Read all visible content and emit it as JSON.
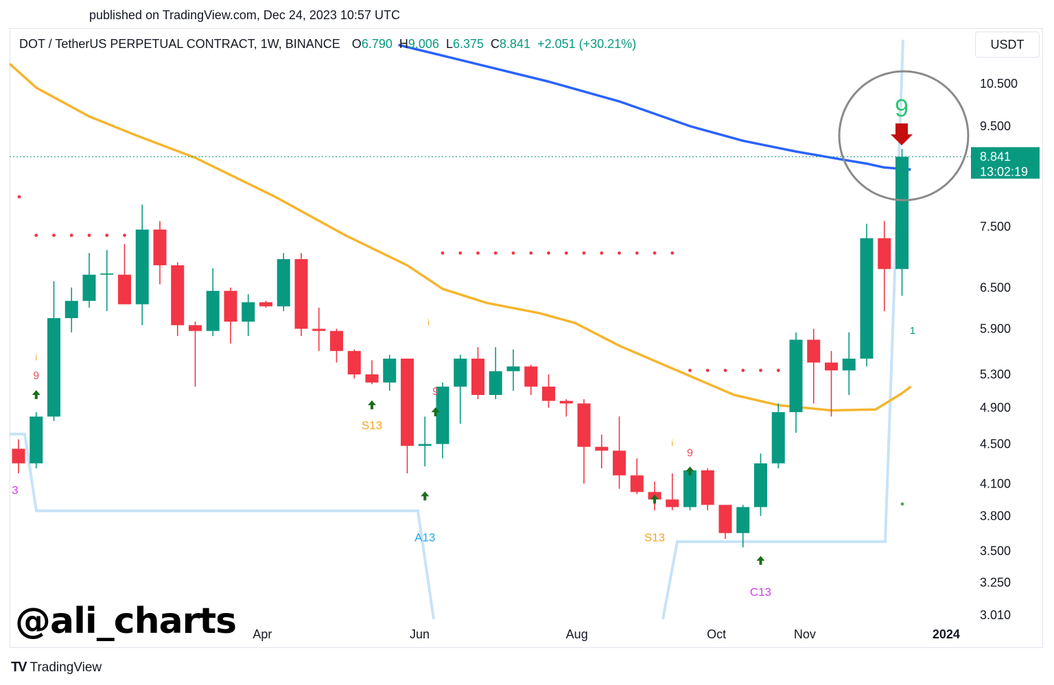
{
  "published": "published on TradingView.com, Dec 24, 2023 10:57 UTC",
  "header": {
    "pair": "DOT / TetherUS PERPETUAL CONTRACT, 1W, BINANCE",
    "o_label": "O",
    "o": "6.790",
    "h_label": "H",
    "h": "9.006",
    "l_label": "L",
    "l": "6.375",
    "c_label": "C",
    "c": "8.841",
    "change": "+2.051 (+30.21%)"
  },
  "currency": "USDT",
  "watermark": "@ali_charts",
  "footer": {
    "logo": "TV",
    "brand": "TradingView"
  },
  "colors": {
    "up": "#089981",
    "down": "#f23645",
    "ma_slow": "#2962ff",
    "ma_fast": "#f5b52e",
    "support": "#c7e3f8",
    "resistance_dots": "#f23645",
    "grid": "#ffffff"
  },
  "chart_data": {
    "type": "candlestick",
    "title": "DOT / TetherUS PERPETUAL CONTRACT, 1W, BINANCE",
    "scale": "log",
    "ylim": [
      3.01,
      11.5
    ],
    "y_ticks": [
      "10.500",
      "9.500",
      "7.500",
      "6.500",
      "5.900",
      "5.300",
      "4.900",
      "4.500",
      "4.100",
      "3.800",
      "3.500",
      "3.250",
      "3.010"
    ],
    "x_ticks": [
      {
        "label": "Apr",
        "index": 13.8
      },
      {
        "label": "Jun",
        "index": 22.7
      },
      {
        "label": "Aug",
        "index": 31.6
      },
      {
        "label": "Oct",
        "index": 39.5
      },
      {
        "label": "Nov",
        "index": 44.5
      },
      {
        "label": "2024",
        "index": 52.5
      }
    ],
    "candles": [
      {
        "o": 4.45,
        "h": 4.55,
        "l": 4.2,
        "c": 4.3
      },
      {
        "o": 4.3,
        "h": 4.85,
        "l": 4.25,
        "c": 4.8
      },
      {
        "o": 4.8,
        "h": 6.6,
        "l": 4.75,
        "c": 6.05
      },
      {
        "o": 6.05,
        "h": 6.5,
        "l": 5.85,
        "c": 6.3
      },
      {
        "o": 6.3,
        "h": 7.05,
        "l": 6.2,
        "c": 6.7
      },
      {
        "o": 6.7,
        "h": 7.1,
        "l": 6.15,
        "c": 6.72
      },
      {
        "o": 6.7,
        "h": 7.2,
        "l": 6.25,
        "c": 6.25
      },
      {
        "o": 6.25,
        "h": 7.9,
        "l": 5.95,
        "c": 7.45
      },
      {
        "o": 7.45,
        "h": 7.6,
        "l": 6.55,
        "c": 6.85
      },
      {
        "o": 6.85,
        "h": 6.9,
        "l": 5.8,
        "c": 5.95
      },
      {
        "o": 5.95,
        "h": 6.0,
        "l": 5.15,
        "c": 5.87
      },
      {
        "o": 5.87,
        "h": 6.8,
        "l": 5.8,
        "c": 6.45
      },
      {
        "o": 6.45,
        "h": 6.5,
        "l": 5.7,
        "c": 6.0
      },
      {
        "o": 6.0,
        "h": 6.4,
        "l": 5.8,
        "c": 6.28
      },
      {
        "o": 6.28,
        "h": 6.3,
        "l": 6.2,
        "c": 6.22
      },
      {
        "o": 6.22,
        "h": 7.05,
        "l": 6.15,
        "c": 6.95
      },
      {
        "o": 6.95,
        "h": 7.05,
        "l": 5.8,
        "c": 5.9
      },
      {
        "o": 5.9,
        "h": 6.2,
        "l": 5.6,
        "c": 5.87
      },
      {
        "o": 5.87,
        "h": 5.9,
        "l": 5.45,
        "c": 5.6
      },
      {
        "o": 5.6,
        "h": 5.62,
        "l": 5.25,
        "c": 5.3
      },
      {
        "o": 5.3,
        "h": 5.48,
        "l": 5.18,
        "c": 5.2
      },
      {
        "o": 5.2,
        "h": 5.55,
        "l": 5.1,
        "c": 5.5
      },
      {
        "o": 5.5,
        "h": 5.5,
        "l": 4.2,
        "c": 4.48
      },
      {
        "o": 4.48,
        "h": 4.8,
        "l": 4.27,
        "c": 4.5
      },
      {
        "o": 4.5,
        "h": 5.2,
        "l": 4.35,
        "c": 5.15
      },
      {
        "o": 5.15,
        "h": 5.55,
        "l": 4.72,
        "c": 5.5
      },
      {
        "o": 5.5,
        "h": 5.65,
        "l": 5.0,
        "c": 5.05
      },
      {
        "o": 5.05,
        "h": 5.65,
        "l": 5.0,
        "c": 5.34
      },
      {
        "o": 5.34,
        "h": 5.62,
        "l": 5.1,
        "c": 5.4
      },
      {
        "o": 5.4,
        "h": 5.42,
        "l": 5.05,
        "c": 5.15
      },
      {
        "o": 5.15,
        "h": 5.3,
        "l": 4.9,
        "c": 4.98
      },
      {
        "o": 4.98,
        "h": 5.0,
        "l": 4.8,
        "c": 4.95
      },
      {
        "o": 4.95,
        "h": 5.0,
        "l": 4.1,
        "c": 4.47
      },
      {
        "o": 4.47,
        "h": 4.6,
        "l": 4.25,
        "c": 4.43
      },
      {
        "o": 4.43,
        "h": 4.8,
        "l": 4.05,
        "c": 4.18
      },
      {
        "o": 4.18,
        "h": 4.35,
        "l": 4.0,
        "c": 4.02
      },
      {
        "o": 4.02,
        "h": 4.12,
        "l": 3.85,
        "c": 3.95
      },
      {
        "o": 3.95,
        "h": 4.2,
        "l": 3.85,
        "c": 3.88
      },
      {
        "o": 3.88,
        "h": 4.25,
        "l": 3.85,
        "c": 4.23
      },
      {
        "o": 4.23,
        "h": 4.25,
        "l": 3.85,
        "c": 3.9
      },
      {
        "o": 3.9,
        "h": 3.9,
        "l": 3.6,
        "c": 3.65
      },
      {
        "o": 3.65,
        "h": 3.9,
        "l": 3.53,
        "c": 3.88
      },
      {
        "o": 3.88,
        "h": 4.4,
        "l": 3.8,
        "c": 4.3
      },
      {
        "o": 4.3,
        "h": 4.95,
        "l": 4.25,
        "c": 4.85
      },
      {
        "o": 4.85,
        "h": 5.85,
        "l": 4.62,
        "c": 5.75
      },
      {
        "o": 5.75,
        "h": 5.9,
        "l": 4.95,
        "c": 5.45
      },
      {
        "o": 5.45,
        "h": 5.6,
        "l": 4.8,
        "c": 5.35
      },
      {
        "o": 5.35,
        "h": 5.85,
        "l": 5.05,
        "c": 5.5
      },
      {
        "o": 5.5,
        "h": 7.55,
        "l": 5.4,
        "c": 7.3
      },
      {
        "o": 7.3,
        "h": 7.6,
        "l": 6.15,
        "c": 6.79
      },
      {
        "o": 6.79,
        "h": 9.006,
        "l": 6.375,
        "c": 8.841
      }
    ],
    "series": [
      {
        "name": "MA-50",
        "color": "#f5b52e",
        "points": [
          [
            -0.5,
            11.0
          ],
          [
            1.0,
            10.4
          ],
          [
            4.0,
            9.72
          ],
          [
            6.5,
            9.32
          ],
          [
            10.0,
            8.82
          ],
          [
            14.5,
            8.05
          ],
          [
            18.5,
            7.35
          ],
          [
            22.0,
            6.85
          ],
          [
            24.0,
            6.48
          ],
          [
            26.5,
            6.27
          ],
          [
            29.5,
            6.12
          ],
          [
            31.5,
            5.98
          ],
          [
            34.0,
            5.67
          ],
          [
            38.0,
            5.28
          ],
          [
            40.5,
            5.05
          ],
          [
            43.0,
            4.93
          ],
          [
            46.0,
            4.87
          ],
          [
            48.5,
            4.88
          ],
          [
            50.0,
            5.07
          ],
          [
            50.5,
            5.15
          ]
        ]
      },
      {
        "name": "MA-200",
        "color": "#2962ff",
        "points": [
          [
            21.5,
            11.5
          ],
          [
            25.0,
            11.1
          ],
          [
            30.0,
            10.55
          ],
          [
            34.0,
            10.07
          ],
          [
            38.0,
            9.5
          ],
          [
            41.0,
            9.18
          ],
          [
            44.0,
            8.95
          ],
          [
            46.5,
            8.79
          ],
          [
            48.0,
            8.7
          ],
          [
            49.0,
            8.62
          ],
          [
            50.5,
            8.58
          ]
        ]
      }
    ],
    "current_price": {
      "value": "8.841",
      "countdown": "13:02:19"
    },
    "td_labels": [
      {
        "text": "9",
        "index": 1.0,
        "price": 5.24,
        "color": "#ee4f5e",
        "size": 16
      },
      {
        "text": "i",
        "index": 1.0,
        "price": 5.48,
        "color": "#f7a928",
        "size": 13
      },
      {
        "text": "S13",
        "index": 20.0,
        "price": 4.66,
        "color": "#f5a623",
        "size": 17
      },
      {
        "text": "i",
        "index": 23.2,
        "price": 5.95,
        "color": "#f7a928",
        "size": 13
      },
      {
        "text": "9",
        "index": 23.6,
        "price": 5.05,
        "color": "#ee4f5e",
        "size": 16
      },
      {
        "text": "A13",
        "index": 23.0,
        "price": 3.58,
        "color": "#22a7f0",
        "size": 17
      },
      {
        "text": "S13",
        "index": 36.0,
        "price": 3.58,
        "color": "#f5a623",
        "size": 17
      },
      {
        "text": "i",
        "index": 37.0,
        "price": 4.48,
        "color": "#f7a928",
        "size": 13
      },
      {
        "text": "9",
        "index": 38.0,
        "price": 4.37,
        "color": "#ee4f5e",
        "size": 16
      },
      {
        "text": "C13",
        "index": 42.0,
        "price": 3.15,
        "color": "#d63df0",
        "size": 17
      },
      {
        "text": "1",
        "index": 50.6,
        "price": 5.83,
        "color": "#089981",
        "size": 15
      },
      {
        "text": "3",
        "index": -0.2,
        "price": 4.0,
        "color": "#d63df0",
        "size": 17
      }
    ],
    "annotation": {
      "text": "9",
      "color": "#2fc475"
    }
  }
}
